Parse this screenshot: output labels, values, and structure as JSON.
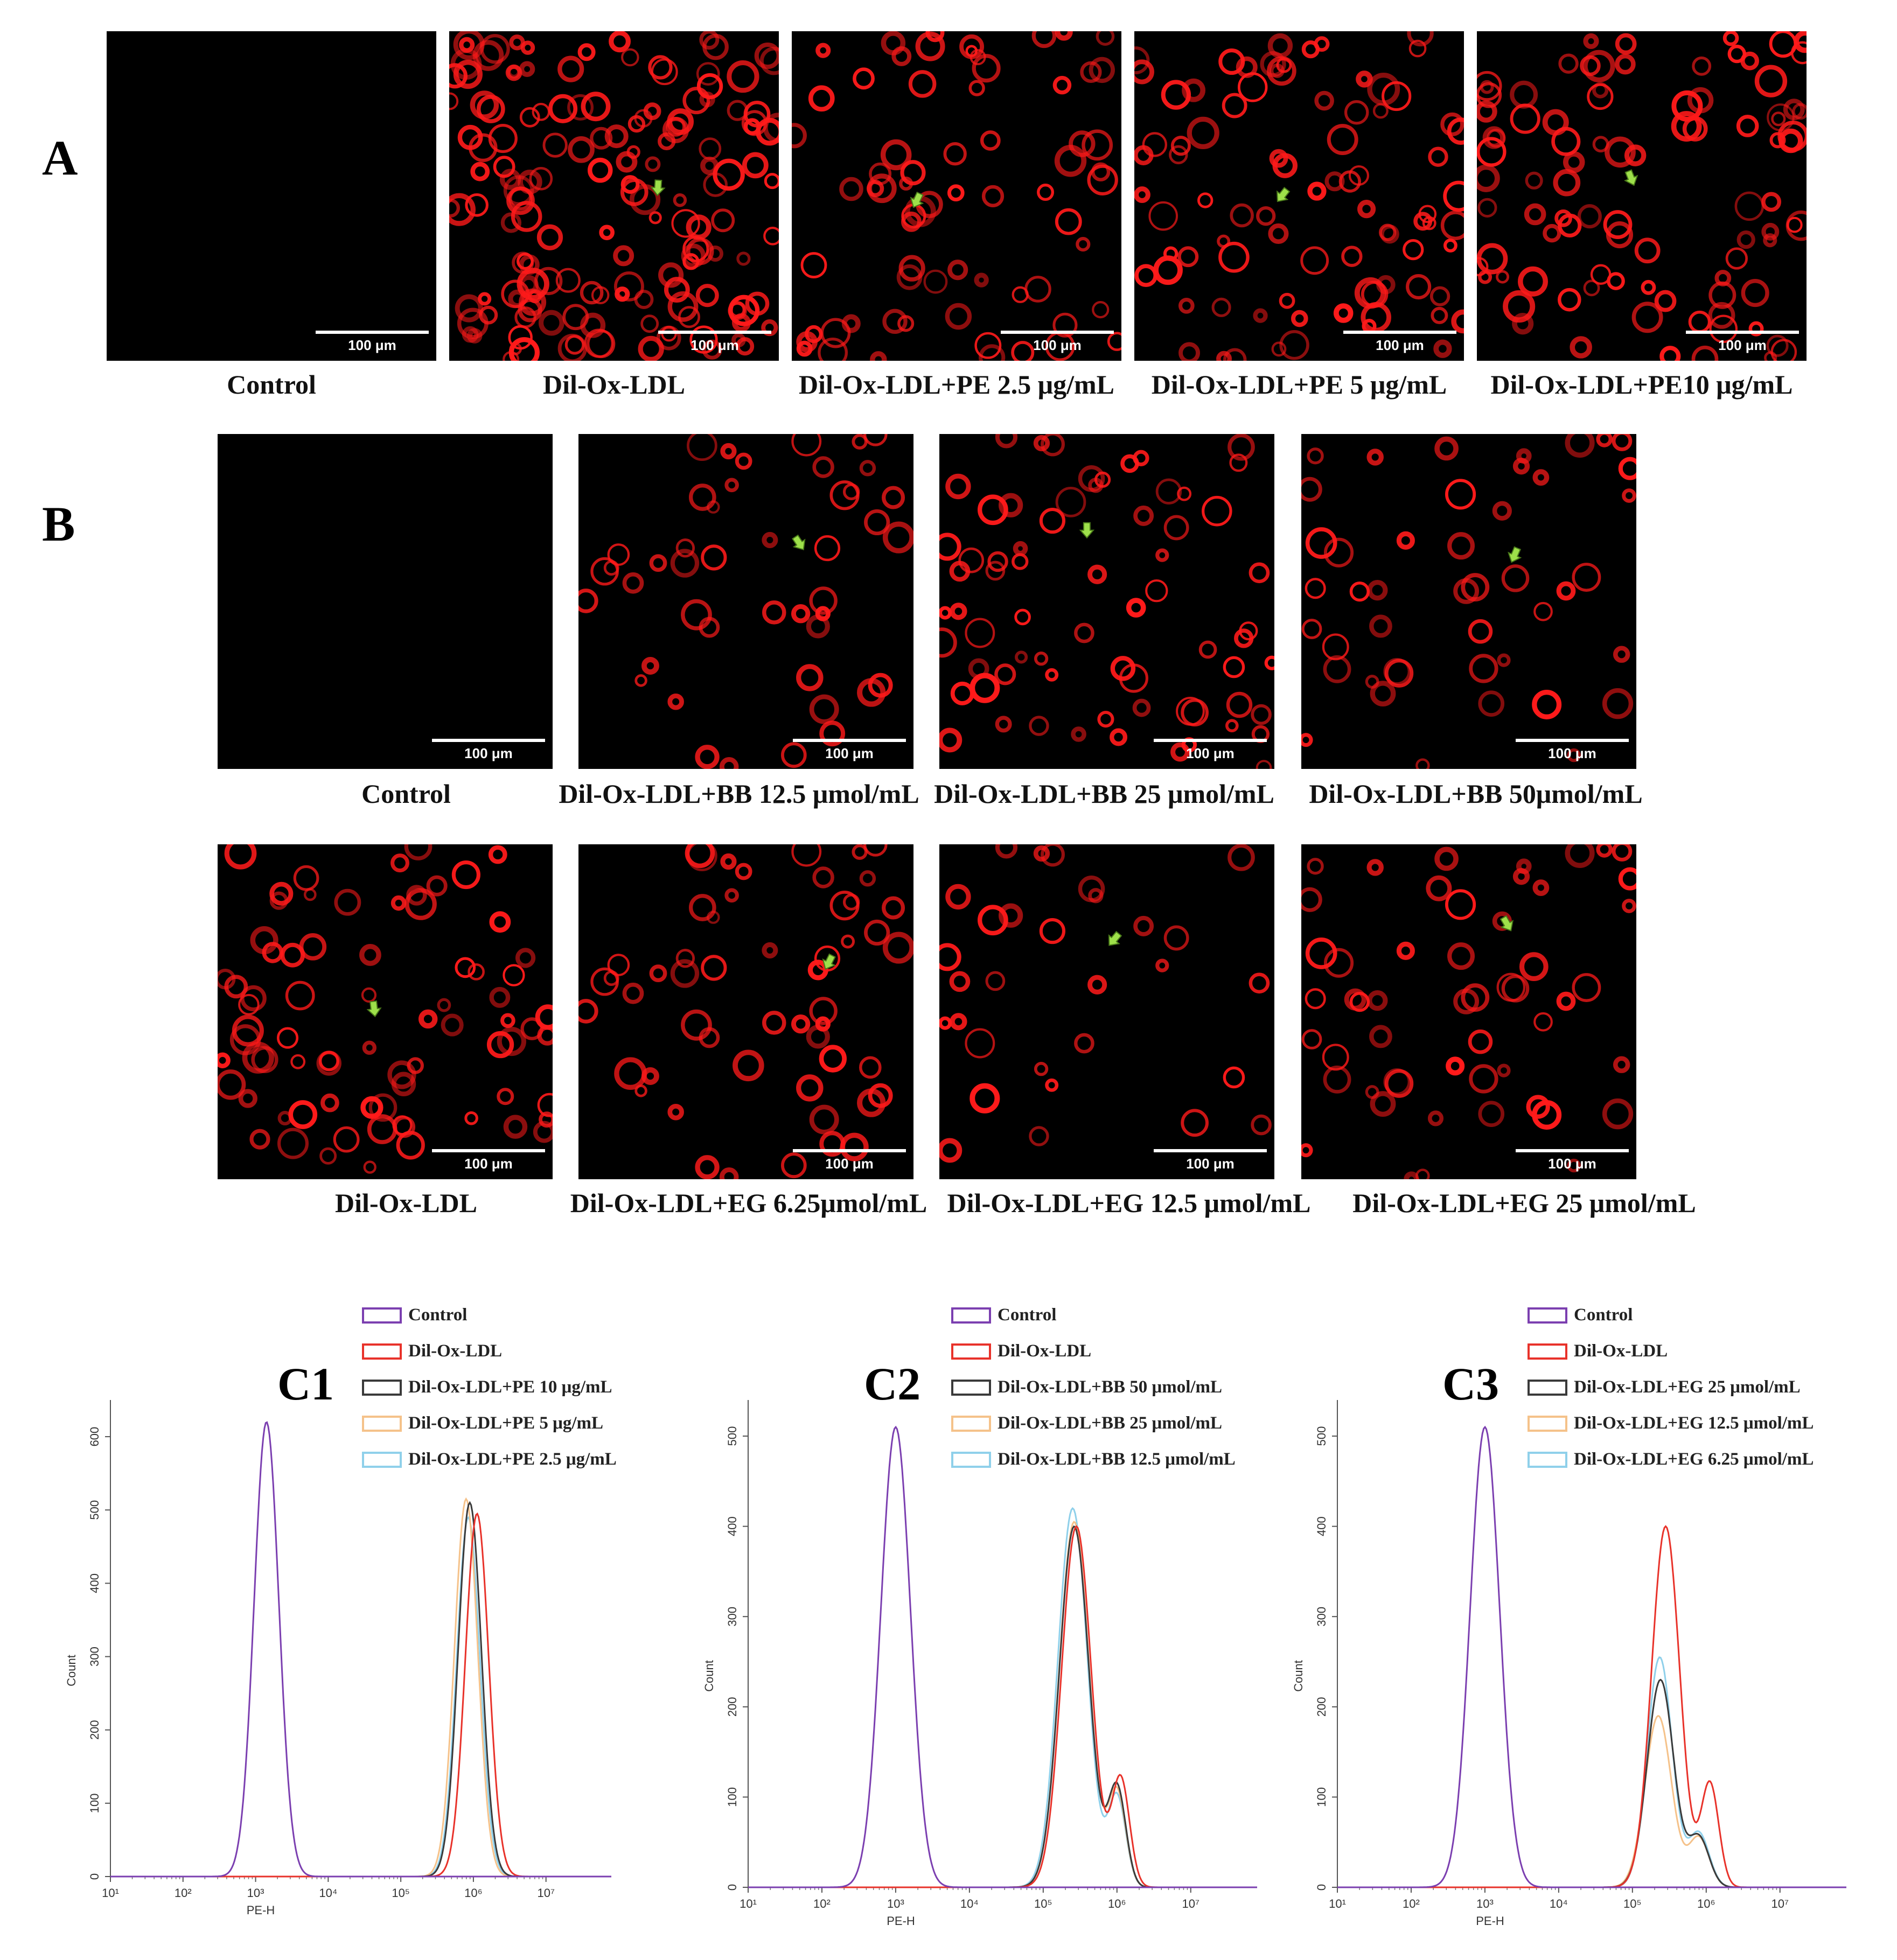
{
  "figure": {
    "panel_a_letter": "A",
    "panel_b_letter": "B",
    "scale_label": "100 μm",
    "row_a": [
      {
        "caption": "Control",
        "density": 0
      },
      {
        "caption": "Dil-Ox-LDL",
        "density": 1.0
      },
      {
        "caption": "Dil-Ox-LDL+PE 2.5 μg/mL",
        "density": 0.45
      },
      {
        "caption": "Dil-Ox-LDL+PE 5 μg/mL",
        "density": 0.55
      },
      {
        "caption": "Dil-Ox-LDL+PE10 μg/mL",
        "density": 0.6
      }
    ],
    "row_b1": [
      {
        "caption": "Control",
        "density": 0
      },
      {
        "caption": "Dil-Ox-LDL+BB 12.5 μmol/mL",
        "density": 0.3
      },
      {
        "caption": "Dil-Ox-LDL+BB 25 μmol/mL",
        "density": 0.45
      },
      {
        "caption": "Dil-Ox-LDL+BB 50μmol/mL",
        "density": 0.3
      }
    ],
    "row_b2": [
      {
        "caption": "Dil-Ox-LDL",
        "density": 0.5
      },
      {
        "caption": "Dil-Ox-LDL+EG 6.25μmol/mL",
        "density": 0.35
      },
      {
        "caption": "Dil-Ox-LDL+EG 12.5 μmol/mL",
        "density": 0.2
      },
      {
        "caption": "Dil-Ox-LDL+EG 25 μmol/mL",
        "density": 0.35
      }
    ],
    "colors": {
      "fluor": "#ff1a1a",
      "arrow": "#9ee04a",
      "control": "#7b3fb0",
      "oxldl": "#e8322a",
      "high": "#3a3a3a",
      "mid": "#f5c28a",
      "low": "#8fd0ea"
    }
  },
  "chart_data": [
    {
      "id": "C1",
      "type": "line",
      "xlabel": "PE-H",
      "ylabel": "Count",
      "xscale": "log",
      "xlim": [
        1,
        7.9
      ],
      "ylim": [
        0,
        650
      ],
      "xticks": [
        "10¹",
        "10²",
        "10³",
        "10⁴",
        "10⁵",
        "10⁶",
        "10⁷"
      ],
      "yticks": [
        0,
        100,
        200,
        300,
        400,
        500,
        600
      ],
      "legend": [
        "Control",
        "Dil-Ox-LDL",
        "Dil-Ox-LDL+PE 10 μg/mL",
        "Dil-Ox-LDL+PE 5 μg/mL",
        "Dil-Ox-LDL+PE 2.5 μg/mL"
      ],
      "series": [
        {
          "name": "Control",
          "peaks": [
            [
              3.15,
              620,
              0.17
            ]
          ]
        },
        {
          "name": "Dil-Ox-LDL",
          "peaks": [
            [
              6.05,
              495,
              0.16
            ]
          ]
        },
        {
          "name": "Dil-Ox-LDL+PE 10 μg/mL",
          "peaks": [
            [
              5.95,
              510,
              0.16
            ]
          ]
        },
        {
          "name": "Dil-Ox-LDL+PE 5 μg/mL",
          "peaks": [
            [
              5.9,
              515,
              0.16
            ]
          ]
        },
        {
          "name": "Dil-Ox-LDL+PE 2.5 μg/mL",
          "peaks": [
            [
              5.93,
              490,
              0.16
            ]
          ]
        }
      ]
    },
    {
      "id": "C2",
      "type": "line",
      "xlabel": "PE-H",
      "ylabel": "Count",
      "xscale": "log",
      "xlim": [
        1,
        7.9
      ],
      "ylim": [
        0,
        540
      ],
      "xticks": [
        "10¹",
        "10²",
        "10³",
        "10⁴",
        "10⁵",
        "10⁶",
        "10⁷"
      ],
      "yticks": [
        0,
        100,
        200,
        300,
        400,
        500
      ],
      "legend": [
        "Control",
        "Dil-Ox-LDL",
        "Dil-Ox-LDL+BB 50 μmol/mL",
        "Dil-Ox-LDL+BB 25 μmol/mL",
        "Dil-Ox-LDL+BB 12.5 μmol/mL"
      ],
      "series": [
        {
          "name": "Control",
          "peaks": [
            [
              3.0,
              510,
              0.2
            ]
          ]
        },
        {
          "name": "Dil-Ox-LDL",
          "peaks": [
            [
              5.45,
              400,
              0.2
            ],
            [
              6.05,
              120,
              0.12
            ]
          ]
        },
        {
          "name": "Dil-Ox-LDL+BB 50 μmol/mL",
          "peaks": [
            [
              5.42,
              400,
              0.2
            ],
            [
              6.0,
              110,
              0.12
            ]
          ]
        },
        {
          "name": "Dil-Ox-LDL+BB 25 μmol/mL",
          "peaks": [
            [
              5.42,
              405,
              0.2
            ],
            [
              6.0,
              105,
              0.12
            ]
          ]
        },
        {
          "name": "Dil-Ox-LDL+BB 12.5 μmol/mL",
          "peaks": [
            [
              5.4,
              420,
              0.2
            ],
            [
              6.0,
              100,
              0.12
            ]
          ]
        }
      ]
    },
    {
      "id": "C3",
      "type": "line",
      "xlabel": "PE-H",
      "ylabel": "Count",
      "xscale": "log",
      "xlim": [
        1,
        7.9
      ],
      "ylim": [
        0,
        540
      ],
      "xticks": [
        "10¹",
        "10²",
        "10³",
        "10⁴",
        "10⁵",
        "10⁶",
        "10⁷"
      ],
      "yticks": [
        0,
        100,
        200,
        300,
        400,
        500
      ],
      "legend": [
        "Control",
        "Dil-Ox-LDL",
        "Dil-Ox-LDL+EG 25 μmol/mL",
        "Dil-Ox-LDL+EG 12.5 μmol/mL",
        "Dil-Ox-LDL+EG 6.25 μmol/mL"
      ],
      "series": [
        {
          "name": "Control",
          "peaks": [
            [
              3.0,
              510,
              0.2
            ]
          ]
        },
        {
          "name": "Dil-Ox-LDL",
          "peaks": [
            [
              5.45,
              400,
              0.19
            ],
            [
              6.05,
              115,
              0.12
            ]
          ]
        },
        {
          "name": "Dil-Ox-LDL+EG 25 μmol/mL",
          "peaks": [
            [
              5.38,
              230,
              0.18
            ],
            [
              5.9,
              55,
              0.14
            ]
          ]
        },
        {
          "name": "Dil-Ox-LDL+EG 12.5 μmol/mL",
          "peaks": [
            [
              5.35,
              190,
              0.18
            ],
            [
              5.9,
              55,
              0.14
            ]
          ]
        },
        {
          "name": "Dil-Ox-LDL+EG 6.25 μmol/mL",
          "peaks": [
            [
              5.37,
              255,
              0.17
            ],
            [
              5.9,
              60,
              0.14
            ]
          ]
        }
      ]
    }
  ]
}
